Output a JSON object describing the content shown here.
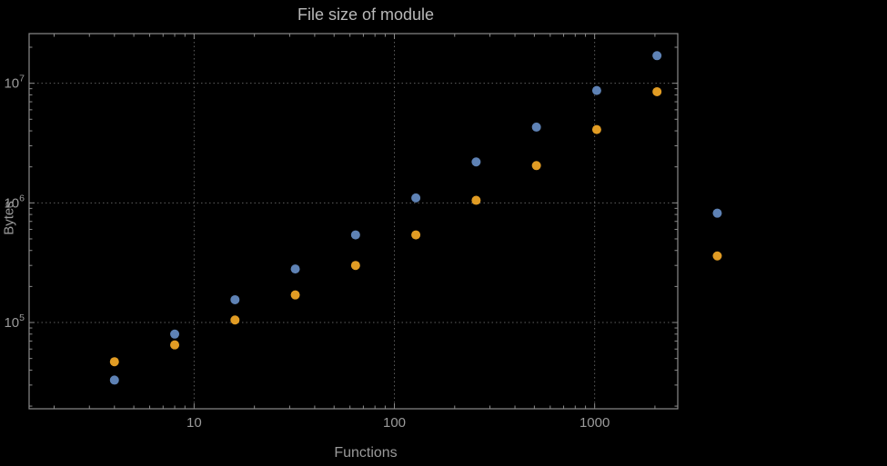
{
  "chart_data": {
    "type": "scatter",
    "title": "File size of module",
    "xlabel": "Functions",
    "ylabel": "Bytes",
    "x_scale": "log",
    "y_scale": "log",
    "xlim": [
      1.5,
      2600
    ],
    "ylim": [
      19000,
      26000000
    ],
    "x_ticks": [
      10,
      100,
      1000
    ],
    "y_ticks": [
      100000,
      1000000,
      10000000
    ],
    "grid": true,
    "legend": false,
    "series": [
      {
        "name": "blue-series",
        "color": "#5e82b5",
        "x": [
          4,
          8,
          16,
          32,
          64,
          128,
          256,
          512,
          1024,
          2048,
          4096
        ],
        "y": [
          33000,
          80000,
          155000,
          280000,
          540000,
          1100000,
          2200000,
          4300000,
          8700000,
          17000000,
          820000
        ]
      },
      {
        "name": "orange-series",
        "color": "#e19c24",
        "x": [
          4,
          8,
          16,
          32,
          64,
          128,
          256,
          512,
          1024,
          2048,
          4096
        ],
        "y": [
          47000,
          65000,
          105000,
          170000,
          300000,
          540000,
          1050000,
          2050000,
          4100000,
          8500000,
          360000
        ]
      }
    ]
  },
  "colors": {
    "background": "#000000",
    "frame": "#8a8a8a",
    "grid": "#5e5e5e",
    "tick_text": "#9a9a9a",
    "title_text": "#b8b8b8",
    "axis_label_text": "#9a9a9a",
    "series_blue": "#5e82b5",
    "series_orange": "#e19c24"
  }
}
